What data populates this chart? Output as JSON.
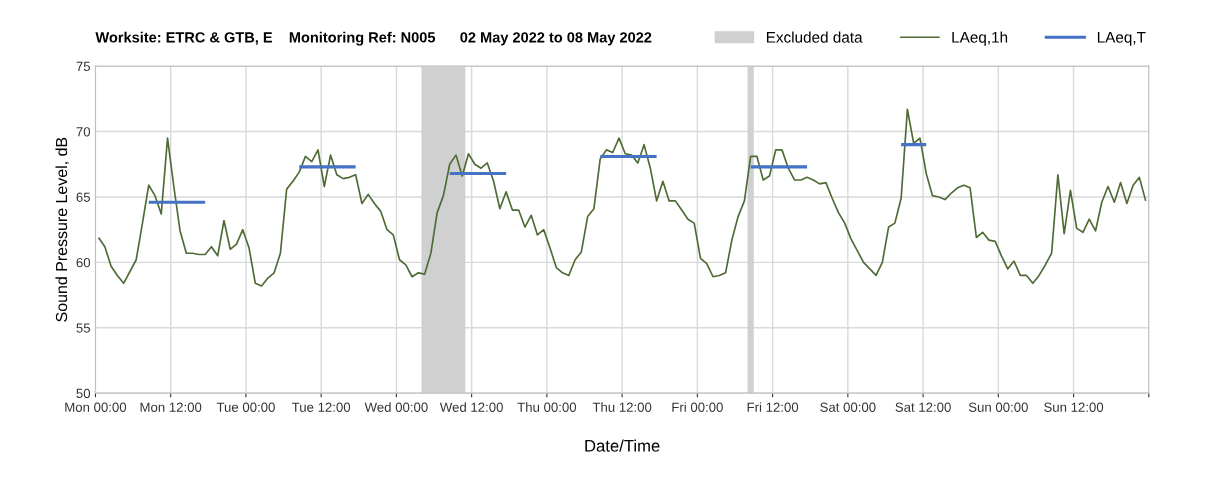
{
  "chart_data": {
    "type": "line",
    "title": "Worksite: ETRC & GTB, E    Monitoring Ref: N005      02 May 2022 to 08 May 2022",
    "xlabel": "Date/Time",
    "ylabel": "Sound Pressure Level, dB",
    "xlim": [
      "2022-05-02T00:00",
      "2022-05-09T00:00"
    ],
    "ylim": [
      50,
      75
    ],
    "yticks": [
      50,
      55,
      60,
      65,
      70,
      75
    ],
    "xticks": [
      {
        "value": "2022-05-02T00:00",
        "label": "Mon 00:00"
      },
      {
        "value": "2022-05-02T12:00",
        "label": "Mon 12:00"
      },
      {
        "value": "2022-05-03T00:00",
        "label": "Tue 00:00"
      },
      {
        "value": "2022-05-03T12:00",
        "label": "Tue 12:00"
      },
      {
        "value": "2022-05-04T00:00",
        "label": "Wed 00:00"
      },
      {
        "value": "2022-05-04T12:00",
        "label": "Wed 12:00"
      },
      {
        "value": "2022-05-05T00:00",
        "label": "Thu 00:00"
      },
      {
        "value": "2022-05-05T12:00",
        "label": "Thu 12:00"
      },
      {
        "value": "2022-05-06T00:00",
        "label": "Fri 00:00"
      },
      {
        "value": "2022-05-06T12:00",
        "label": "Fri 12:00"
      },
      {
        "value": "2022-05-07T00:00",
        "label": "Sat 00:00"
      },
      {
        "value": "2022-05-07T12:00",
        "label": "Sat 12:00"
      },
      {
        "value": "2022-05-08T00:00",
        "label": "Sun 00:00"
      },
      {
        "value": "2022-05-08T12:00",
        "label": "Sun 12:00"
      },
      {
        "value": "2022-05-09T00:00",
        "label": null
      }
    ],
    "grid": true,
    "legend": "top right",
    "marker": "none",
    "bands": [
      {
        "axis": "x",
        "from": "2022-05-04T04:00",
        "to": "2022-05-04T11:00",
        "label": "Excluded data",
        "color": "#d0d0d0"
      },
      {
        "axis": "x",
        "from": "2022-05-06T08:00",
        "to": "2022-05-06T09:00",
        "color": "#d0d0d0"
      }
    ],
    "series": [
      {
        "name": "LAeq,1h",
        "color": "#4f6b35",
        "x": [
          "2022-05-02T00:30",
          "2022-05-02T01:30",
          "2022-05-02T02:30",
          "2022-05-02T03:30",
          "2022-05-02T04:30",
          "2022-05-02T06:30",
          "2022-05-02T07:30",
          "2022-05-02T08:30",
          "2022-05-02T09:30",
          "2022-05-02T10:30",
          "2022-05-02T11:30",
          "2022-05-02T12:30",
          "2022-05-02T13:30",
          "2022-05-02T14:30",
          "2022-05-02T15:30",
          "2022-05-02T16:30",
          "2022-05-02T17:30",
          "2022-05-02T18:30",
          "2022-05-02T19:30",
          "2022-05-02T20:30",
          "2022-05-02T21:30",
          "2022-05-02T22:30",
          "2022-05-02T23:30",
          "2022-05-03T00:30",
          "2022-05-03T01:30",
          "2022-05-03T02:30",
          "2022-05-03T03:30",
          "2022-05-03T04:30",
          "2022-05-03T05:30",
          "2022-05-03T06:30",
          "2022-05-03T07:30",
          "2022-05-03T08:30",
          "2022-05-03T09:30",
          "2022-05-03T10:30",
          "2022-05-03T11:30",
          "2022-05-03T12:30",
          "2022-05-03T13:30",
          "2022-05-03T14:30",
          "2022-05-03T15:30",
          "2022-05-03T16:30",
          "2022-05-03T17:30",
          "2022-05-03T18:30",
          "2022-05-03T19:30",
          "2022-05-03T20:30",
          "2022-05-03T21:30",
          "2022-05-03T22:30",
          "2022-05-03T23:30",
          "2022-05-04T00:30",
          "2022-05-04T01:30",
          "2022-05-04T02:30",
          "2022-05-04T03:30",
          "2022-05-04T04:30",
          "2022-05-04T05:30",
          "2022-05-04T06:30",
          "2022-05-04T07:30",
          "2022-05-04T08:30",
          "2022-05-04T09:30",
          "2022-05-04T10:30",
          "2022-05-04T11:30",
          "2022-05-04T12:30",
          "2022-05-04T13:30",
          "2022-05-04T14:30",
          "2022-05-04T15:30",
          "2022-05-04T16:30",
          "2022-05-04T17:30",
          "2022-05-04T18:30",
          "2022-05-04T19:30",
          "2022-05-04T20:30",
          "2022-05-04T21:30",
          "2022-05-04T22:30",
          "2022-05-04T23:30",
          "2022-05-05T00:30",
          "2022-05-05T01:30",
          "2022-05-05T02:30",
          "2022-05-05T03:30",
          "2022-05-05T04:30",
          "2022-05-05T05:30",
          "2022-05-05T06:30",
          "2022-05-05T07:30",
          "2022-05-05T08:30",
          "2022-05-05T09:30",
          "2022-05-05T10:30",
          "2022-05-05T11:30",
          "2022-05-05T12:30",
          "2022-05-05T13:30",
          "2022-05-05T14:30",
          "2022-05-05T15:30",
          "2022-05-05T16:30",
          "2022-05-05T17:30",
          "2022-05-05T18:30",
          "2022-05-05T19:30",
          "2022-05-05T20:30",
          "2022-05-05T21:30",
          "2022-05-05T22:30",
          "2022-05-05T23:30",
          "2022-05-06T00:30",
          "2022-05-06T01:30",
          "2022-05-06T02:30",
          "2022-05-06T03:30",
          "2022-05-06T04:30",
          "2022-05-06T05:30",
          "2022-05-06T06:30",
          "2022-05-06T07:30",
          "2022-05-06T08:30",
          "2022-05-06T09:30",
          "2022-05-06T10:30",
          "2022-05-06T11:30",
          "2022-05-06T12:30",
          "2022-05-06T13:30",
          "2022-05-06T14:30",
          "2022-05-06T15:30",
          "2022-05-06T16:30",
          "2022-05-06T17:30",
          "2022-05-06T18:30",
          "2022-05-06T19:30",
          "2022-05-06T20:30",
          "2022-05-06T21:30",
          "2022-05-06T22:30",
          "2022-05-06T23:30",
          "2022-05-07T00:30",
          "2022-05-07T01:30",
          "2022-05-07T02:30",
          "2022-05-07T03:30",
          "2022-05-07T04:30",
          "2022-05-07T05:30",
          "2022-05-07T06:30",
          "2022-05-07T07:30",
          "2022-05-07T08:30",
          "2022-05-07T09:30",
          "2022-05-07T10:30",
          "2022-05-07T11:30",
          "2022-05-07T12:30",
          "2022-05-07T13:30",
          "2022-05-07T14:30",
          "2022-05-07T15:30",
          "2022-05-07T16:30",
          "2022-05-07T17:30",
          "2022-05-07T18:30",
          "2022-05-07T19:30",
          "2022-05-07T20:30",
          "2022-05-07T21:30",
          "2022-05-07T22:30",
          "2022-05-07T23:30",
          "2022-05-08T00:30",
          "2022-05-08T01:30",
          "2022-05-08T02:30",
          "2022-05-08T03:30",
          "2022-05-08T04:30",
          "2022-05-08T05:30",
          "2022-05-08T06:30",
          "2022-05-08T07:30",
          "2022-05-08T08:30",
          "2022-05-08T09:30",
          "2022-05-08T10:30",
          "2022-05-08T11:30",
          "2022-05-08T12:30",
          "2022-05-08T13:30",
          "2022-05-08T14:30",
          "2022-05-08T15:30",
          "2022-05-08T16:30",
          "2022-05-08T17:30",
          "2022-05-08T18:30",
          "2022-05-08T19:30",
          "2022-05-08T20:30",
          "2022-05-08T21:30",
          "2022-05-08T22:30",
          "2022-05-08T23:30"
        ],
        "values": [
          61.9,
          61.2,
          59.7,
          59.0,
          58.4,
          60.2,
          63.0,
          65.9,
          65.1,
          63.7,
          69.5,
          65.8,
          62.4,
          60.7,
          60.7,
          60.6,
          60.6,
          61.2,
          60.5,
          63.2,
          61.0,
          61.4,
          62.5,
          61.1,
          58.4,
          58.2,
          58.8,
          59.2,
          60.7,
          65.6,
          66.2,
          66.9,
          68.1,
          67.7,
          68.6,
          65.8,
          68.2,
          66.7,
          66.4,
          66.5,
          66.7,
          64.5,
          65.2,
          64.5,
          63.9,
          62.5,
          62.1,
          60.2,
          59.8,
          58.9,
          59.2,
          59.1,
          60.7,
          63.8,
          65.1,
          67.5,
          68.2,
          66.6,
          68.3,
          67.5,
          67.2,
          67.6,
          66.2,
          64.1,
          65.4,
          64.0,
          64.0,
          62.7,
          63.6,
          62.1,
          62.5,
          61.1,
          59.6,
          59.2,
          59.0,
          60.2,
          60.8,
          63.5,
          64.1,
          67.9,
          68.6,
          68.4,
          69.5,
          68.3,
          68.2,
          67.6,
          69.0,
          67.2,
          64.7,
          66.2,
          64.7,
          64.7,
          64.0,
          63.3,
          63.0,
          60.3,
          59.9,
          58.9,
          59.0,
          59.2,
          61.7,
          63.5,
          64.7,
          68.1,
          68.1,
          66.3,
          66.6,
          68.6,
          68.6,
          67.2,
          66.3,
          66.3,
          66.5,
          66.3,
          66.0,
          66.1,
          64.9,
          63.8,
          63.0,
          61.8,
          60.9,
          60.0,
          59.5,
          59.0,
          60.0,
          62.7,
          63.0,
          64.9,
          71.7,
          69.1,
          69.5,
          66.8,
          65.1,
          65.0,
          64.8,
          65.3,
          65.7,
          65.9,
          65.7,
          61.9,
          62.3,
          61.7,
          61.6,
          60.5,
          59.5,
          60.1,
          59.0,
          59.0,
          58.4,
          59.0,
          59.8,
          60.7,
          66.7,
          62.2,
          65.5,
          62.6,
          62.3,
          63.3,
          62.4,
          64.6,
          65.8,
          64.6,
          66.1,
          64.5,
          65.9,
          66.5,
          64.7
        ]
      },
      {
        "name": "LAeq,T",
        "color": "#4472c4",
        "x": [
          "2022-05-02T08:30",
          "2022-05-02T17:30",
          null,
          "2022-05-03T08:30",
          "2022-05-03T17:30",
          null,
          "2022-05-04T08:30",
          "2022-05-04T17:30",
          null,
          "2022-05-05T08:30",
          "2022-05-05T17:30",
          null,
          "2022-05-06T08:30",
          "2022-05-06T17:30",
          null,
          "2022-05-07T08:30",
          "2022-05-07T12:30"
        ],
        "values": [
          64.6,
          64.6,
          null,
          67.3,
          67.3,
          null,
          66.8,
          66.8,
          null,
          68.1,
          68.1,
          null,
          67.3,
          67.3,
          null,
          69.0,
          69.0
        ]
      }
    ]
  }
}
